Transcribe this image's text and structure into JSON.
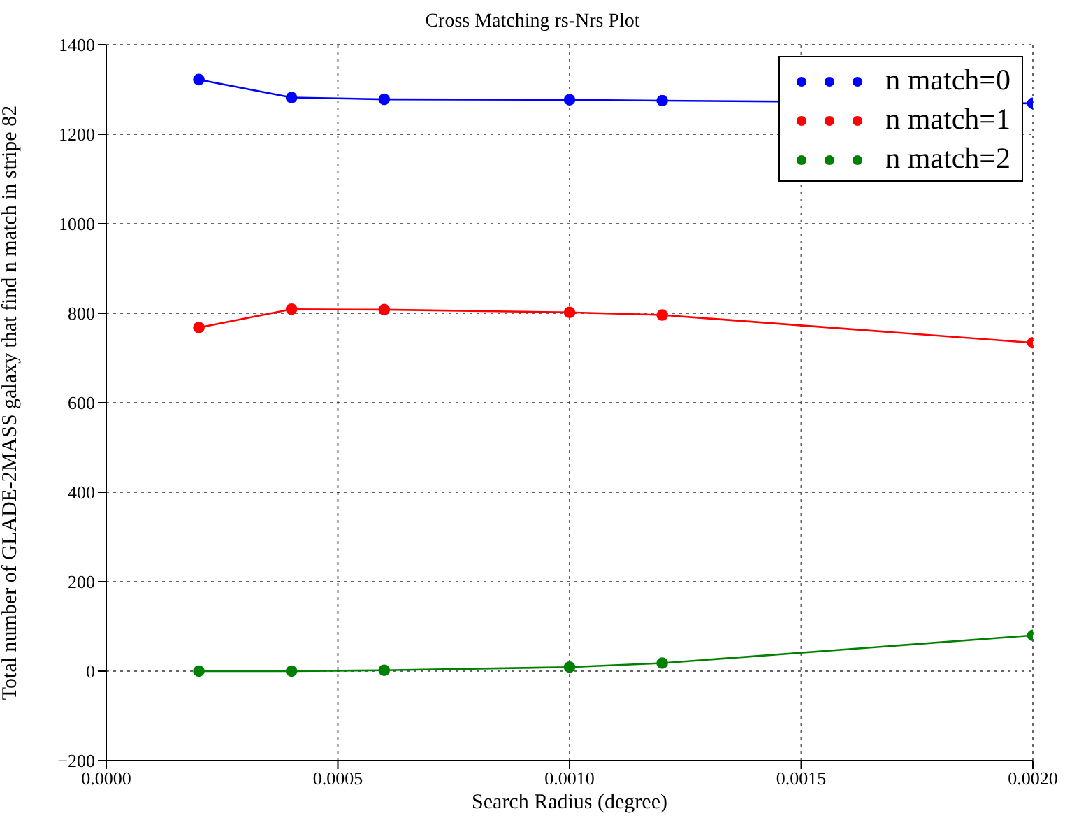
{
  "chart_data": {
    "type": "line",
    "title": "Cross Matching rs-Nrs Plot",
    "xlabel": "Search Radius (degree)",
    "ylabel": "Total number of GLADE-2MASS galaxy that find n match in stripe 82",
    "x": [
      0.0002,
      0.0004,
      0.0006,
      0.001,
      0.0012,
      0.002
    ],
    "series": [
      {
        "name": "n match=0",
        "color": "#0000ff",
        "values": [
          1322,
          1282,
          1278,
          1277,
          1275,
          1269
        ]
      },
      {
        "name": "n match=1",
        "color": "#ff0000",
        "values": [
          768,
          809,
          808,
          802,
          796,
          734
        ]
      },
      {
        "name": "n match=2",
        "color": "#008000",
        "values": [
          0,
          0,
          2,
          9,
          18,
          80
        ]
      }
    ],
    "xlim": [
      0,
      0.002
    ],
    "xticks": [
      {
        "value": 0,
        "label": "0.0000"
      },
      {
        "value": 0.0005,
        "label": "0.0005"
      },
      {
        "value": 0.001,
        "label": "0.0010"
      },
      {
        "value": 0.0015,
        "label": "0.0015"
      },
      {
        "value": 0.002,
        "label": "0.0020"
      }
    ],
    "ylim": [
      -200,
      1400
    ],
    "yticks": [
      {
        "value": -200,
        "label": "−200"
      },
      0,
      200,
      400,
      600,
      800,
      1000,
      1200,
      1400
    ],
    "grid": true,
    "legend": "top right",
    "marker": "circle",
    "line_style": "solid"
  }
}
